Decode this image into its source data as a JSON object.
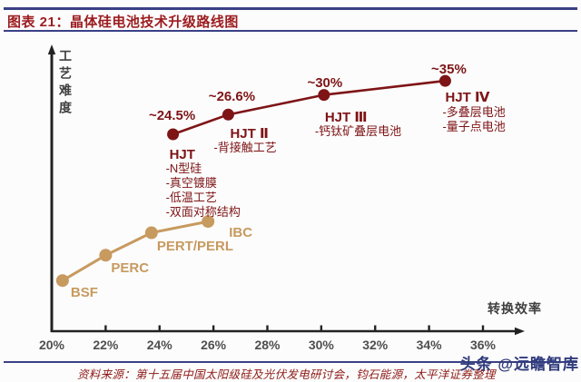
{
  "header": {
    "title": "图表 21：晶体硅电池技术升级路线图"
  },
  "footer": {
    "source": "资料来源：第十五届中国太阳级硅及光伏发电研讨会，钧石能源，太平洋证券整理",
    "watermark": "头条 @远瞻智库"
  },
  "colors": {
    "rule_navy": "#3A4086",
    "title_red": "#9C1C1F",
    "hjt_red": "#7E1416",
    "legacy_tan": "#C79A5F",
    "axis_black": "#222222",
    "tick_gray": "#4F4F4F",
    "source_red": "#8E1A16",
    "watermark_navy": "#2F3B7C"
  },
  "chart_data": {
    "type": "line",
    "title": "晶体硅电池技术升级路线图",
    "xlabel": "转换效率",
    "ylabel": "工艺难度",
    "grid": false,
    "legend": false,
    "x_axis": {
      "min": 20,
      "max": 36,
      "ticks": [
        "20%",
        "22%",
        "24%",
        "26%",
        "28%",
        "30%",
        "32%",
        "34%",
        "36%"
      ],
      "tick_values": [
        20,
        22,
        24,
        26,
        28,
        30,
        32,
        34,
        36
      ]
    },
    "y_axis": {
      "label": "工艺难度",
      "scale": "qualitative 0-100 (axis unlabeled, higher = harder process)"
    },
    "series": [
      {
        "color": "#C79A5F",
        "points": [
          {
            "label": "BSF",
            "efficiency": 20.4,
            "difficulty": 18
          },
          {
            "label": "PERC",
            "efficiency": 22.0,
            "difficulty": 27
          },
          {
            "label": "PERT/PERL",
            "efficiency": 23.7,
            "difficulty": 35
          },
          {
            "label": "IBC",
            "efficiency": 25.8,
            "difficulty": 39
          }
        ]
      },
      {
        "color": "#7E1416",
        "points": [
          {
            "label": "HJT",
            "value_label": "~24.5%",
            "efficiency": 24.5,
            "difficulty": 70,
            "notes": [
              "-N型硅",
              "-真空镀膜",
              "-低温工艺",
              "-双面对称结构"
            ]
          },
          {
            "label": "HJT Ⅱ",
            "value_label": "~26.6%",
            "efficiency": 26.55,
            "difficulty": 77,
            "notes": [
              "-背接触工艺"
            ]
          },
          {
            "label": "HJT Ⅲ",
            "value_label": "~30%",
            "efficiency": 30.1,
            "difficulty": 84,
            "notes": [
              "-钙钛矿叠层电池"
            ]
          },
          {
            "label": "HJT Ⅳ",
            "value_label": "~35%",
            "efficiency": 34.6,
            "difficulty": 89,
            "notes": [
              "-多叠层电池",
              "-量子点电池"
            ]
          }
        ]
      }
    ]
  }
}
